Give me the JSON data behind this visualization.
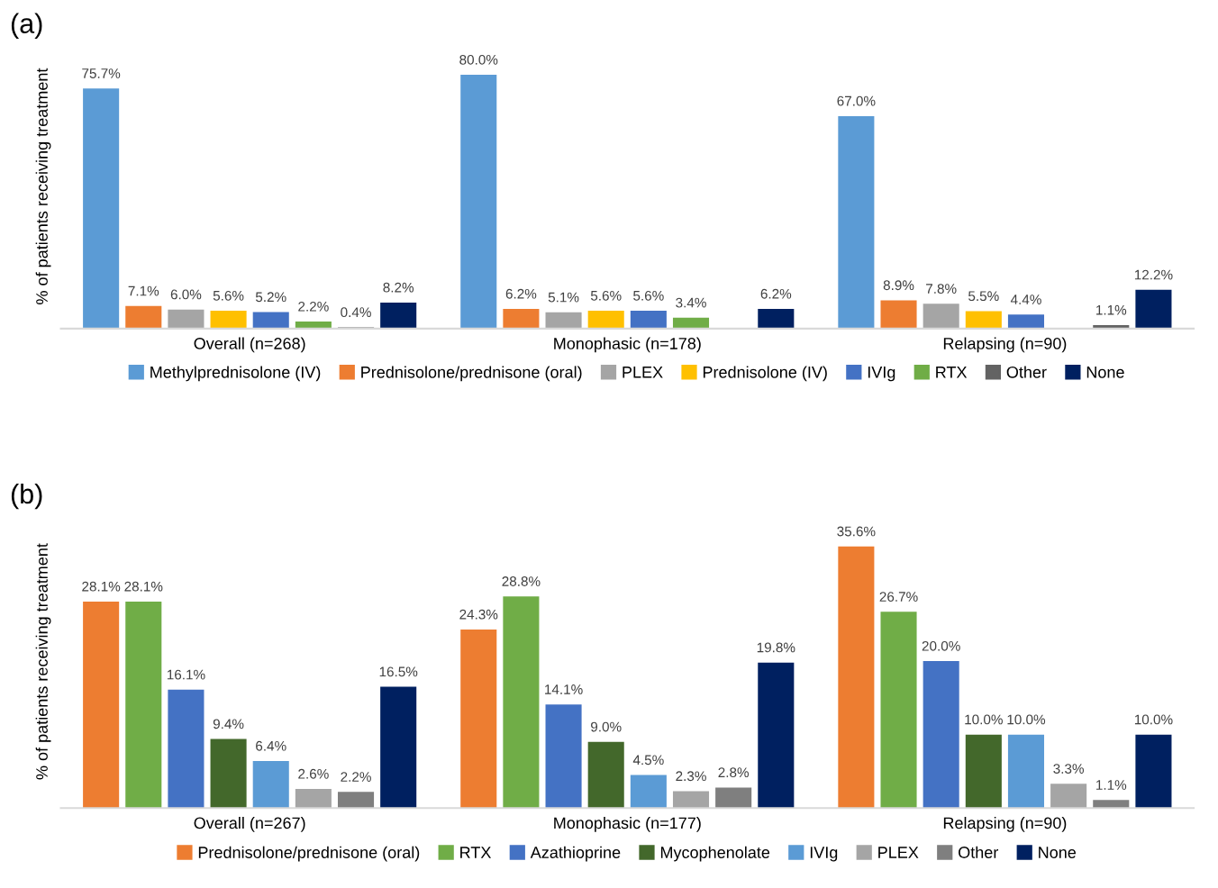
{
  "chart_data": [
    {
      "type": "bar",
      "title": "(a)",
      "ylabel": "% of patients receiving treatment",
      "categories": [
        "Overall (n=268)",
        "Monophasic (n=178)",
        "Relapsing (n=90)"
      ],
      "tick_labels": "x",
      "legend": "bottom",
      "grid": false,
      "series": [
        {
          "name": "Methylprednisolone (IV)",
          "color": "#5b9bd5",
          "values": [
            75.7,
            80.0,
            67.0
          ],
          "value_labels": [
            "75.7%",
            "80.0%",
            "67.0%"
          ]
        },
        {
          "name": "Prednisolone/prednisone (oral)",
          "color": "#ed7d31",
          "values": [
            7.1,
            6.2,
            8.9
          ],
          "value_labels": [
            "7.1%",
            "6.2%",
            "8.9%"
          ]
        },
        {
          "name": "PLEX",
          "color": "#a5a5a5",
          "values": [
            6.0,
            5.1,
            7.8
          ],
          "value_labels": [
            "6.0%",
            "5.1%",
            "7.8%"
          ]
        },
        {
          "name": "Prednisolone (IV)",
          "color": "#ffc000",
          "values": [
            5.6,
            5.6,
            5.5
          ],
          "value_labels": [
            "5.6%",
            "5.6%",
            "5.5%"
          ]
        },
        {
          "name": "IVIg",
          "color": "#4472c4",
          "values": [
            5.2,
            5.6,
            4.4
          ],
          "value_labels": [
            "5.2%",
            "5.6%",
            "4.4%"
          ]
        },
        {
          "name": "RTX",
          "color": "#70ad47",
          "values": [
            2.2,
            3.4,
            null
          ],
          "value_labels": [
            "2.2%",
            "3.4%",
            null
          ]
        },
        {
          "name": "Other",
          "color": "#636363",
          "values": [
            0.4,
            null,
            1.1
          ],
          "value_labels": [
            "0.4%",
            null,
            "1.1%"
          ]
        },
        {
          "name": "None",
          "color": "#002060",
          "values": [
            8.2,
            6.2,
            12.2
          ],
          "value_labels": [
            "8.2%",
            "6.2%",
            "12.2%"
          ]
        }
      ]
    },
    {
      "type": "bar",
      "title": "(b)",
      "ylabel": "% of patients receiving treatment",
      "categories": [
        "Overall (n=267)",
        "Monophasic (n=177)",
        "Relapsing (n=90)"
      ],
      "tick_labels": "x",
      "legend": "bottom",
      "grid": false,
      "series": [
        {
          "name": "Prednisolone/prednisone (oral)",
          "color": "#ed7d31",
          "values": [
            28.1,
            24.3,
            35.6
          ],
          "value_labels": [
            "28.1%",
            "24.3%",
            "35.6%"
          ]
        },
        {
          "name": "RTX",
          "color": "#70ad47",
          "values": [
            28.1,
            28.8,
            26.7
          ],
          "value_labels": [
            "28.1%",
            "28.8%",
            "26.7%"
          ]
        },
        {
          "name": "Azathioprine",
          "color": "#4472c4",
          "values": [
            16.1,
            14.1,
            20.0
          ],
          "value_labels": [
            "16.1%",
            "14.1%",
            "20.0%"
          ]
        },
        {
          "name": "Mycophenolate",
          "color": "#43682b",
          "values": [
            9.4,
            9.0,
            10.0
          ],
          "value_labels": [
            "9.4%",
            "9.0%",
            "10.0%"
          ]
        },
        {
          "name": "IVIg",
          "color": "#5b9bd5",
          "values": [
            6.4,
            4.5,
            10.0
          ],
          "value_labels": [
            "6.4%",
            "4.5%",
            "10.0%"
          ]
        },
        {
          "name": "PLEX",
          "color": "#a5a5a5",
          "values": [
            2.6,
            2.3,
            3.3
          ],
          "value_labels": [
            "2.6%",
            "2.3%",
            "3.3%"
          ]
        },
        {
          "name": "Other",
          "color": "#7f7f7f",
          "values": [
            2.2,
            2.8,
            1.1
          ],
          "value_labels": [
            "2.2%",
            "2.8%",
            "1.1%"
          ]
        },
        {
          "name": "None",
          "color": "#002060",
          "values": [
            16.5,
            19.8,
            10.0
          ],
          "value_labels": [
            "16.5%",
            "19.8%",
            "10.0%"
          ]
        }
      ]
    }
  ]
}
